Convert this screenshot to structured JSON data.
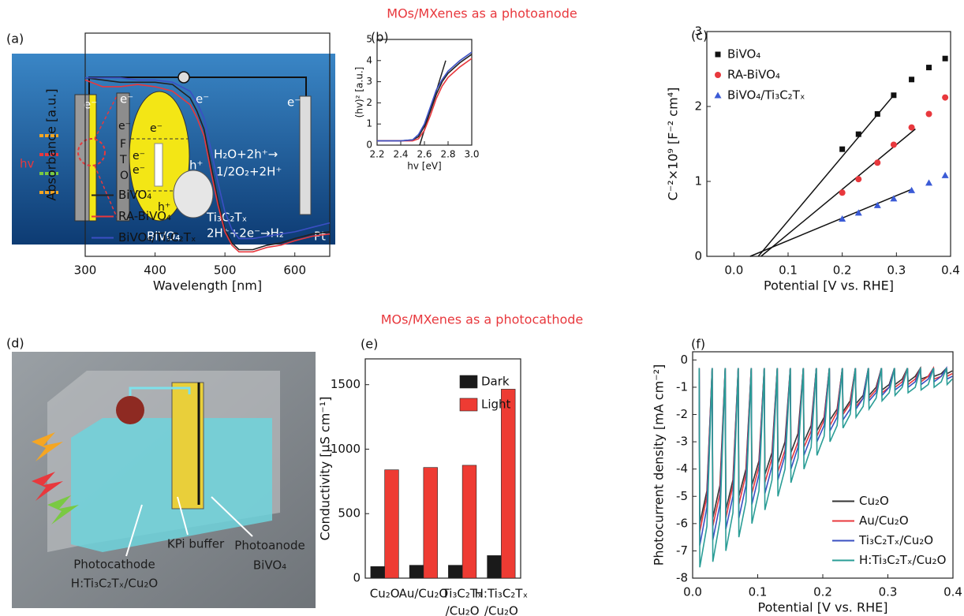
{
  "headings": [
    "MOs/MXenes as a photoanode",
    "MOs/MXenes as a photocathode"
  ],
  "diagram_a": {
    "panel_label": "(a)",
    "texts": [
      "e⁻",
      "e⁻",
      "e⁻",
      "e⁻",
      "e⁻",
      "e⁻",
      "e⁻",
      "e⁻",
      "F",
      "T",
      "O",
      "hv",
      "h⁺",
      "h⁺",
      "H₂O+2h⁺→",
      "1/2O₂+2H⁺",
      "Ti₃C₂Tₓ",
      "BiVO₄",
      "2H⁺+2e⁻→H₂",
      "Pt"
    ]
  },
  "diagram_d": {
    "panel_label": "(d)",
    "texts": [
      "Photocathode",
      "H:Ti₃C₂Tₓ/Cu₂O",
      "KPi buffer",
      "Photoanode",
      "BiVO₄"
    ]
  },
  "chart_data": [
    {
      "type": "line",
      "panel_label": "(b)",
      "xlabel": "Wavelength [nm]",
      "ylabel": "Absorbance [a.u.]",
      "x": [
        300,
        325,
        350,
        375,
        400,
        425,
        450,
        460,
        470,
        480,
        490,
        500,
        510,
        520,
        540,
        560,
        580,
        600,
        625,
        650
      ],
      "xlim": [
        300,
        650
      ],
      "xticks": [
        300,
        400,
        500,
        600
      ],
      "ylim": [
        0,
        1
      ],
      "legend": "lower left",
      "series": [
        {
          "name": "BiVO₄",
          "color": "#222222",
          "values": [
            0.8,
            0.79,
            0.78,
            0.78,
            0.78,
            0.77,
            0.71,
            0.65,
            0.57,
            0.41,
            0.25,
            0.12,
            0.06,
            0.03,
            0.03,
            0.05,
            0.06,
            0.08,
            0.1,
            0.11
          ]
        },
        {
          "name": "RA-BiVO₄",
          "color": "#e8383d",
          "values": [
            0.79,
            0.76,
            0.76,
            0.77,
            0.76,
            0.74,
            0.68,
            0.62,
            0.54,
            0.38,
            0.23,
            0.11,
            0.05,
            0.02,
            0.02,
            0.04,
            0.05,
            0.07,
            0.09,
            0.1
          ]
        },
        {
          "name": "BiVO₄/Ti₃C₂Tₓ",
          "color": "#3b4fc4",
          "values": [
            0.8,
            0.8,
            0.8,
            0.79,
            0.79,
            0.78,
            0.74,
            0.69,
            0.62,
            0.48,
            0.33,
            0.2,
            0.12,
            0.08,
            0.08,
            0.09,
            0.1,
            0.11,
            0.13,
            0.15
          ]
        }
      ]
    },
    {
      "type": "line",
      "xlabel": "hv [eV]",
      "ylabel": "(hv)² [a.u.]",
      "x": [
        2.2,
        2.3,
        2.4,
        2.5,
        2.55,
        2.6,
        2.65,
        2.7,
        2.75,
        2.8,
        2.9,
        3.0
      ],
      "xlim": [
        2.2,
        3.0
      ],
      "xticks": [
        2.2,
        2.4,
        2.6,
        2.8,
        {
          "value": 3.0,
          "label": "3.0"
        }
      ],
      "ylim": [
        0,
        5
      ],
      "yticks": [
        0,
        1,
        2,
        3,
        4,
        5
      ],
      "series": [
        {
          "color": "#222222",
          "values": [
            0.2,
            0.2,
            0.2,
            0.25,
            0.4,
            0.9,
            1.6,
            2.4,
            3.0,
            3.4,
            3.9,
            4.3
          ]
        },
        {
          "color": "#e8383d",
          "values": [
            0.2,
            0.2,
            0.2,
            0.2,
            0.3,
            0.7,
            1.4,
            2.2,
            2.8,
            3.2,
            3.7,
            4.1
          ]
        },
        {
          "color": "#3b4fc4",
          "values": [
            0.2,
            0.2,
            0.2,
            0.25,
            0.5,
            1.0,
            1.8,
            2.6,
            3.1,
            3.5,
            4.0,
            4.4
          ]
        }
      ],
      "fit_lines": [
        {
          "color": "#222222",
          "x": [
            2.56,
            2.78
          ],
          "values": [
            0,
            4
          ]
        }
      ]
    },
    {
      "type": "scatter",
      "panel_label": "(c)",
      "xlabel": "Potential [V vs. RHE]",
      "ylabel": "C⁻²×10⁹ [F⁻² cm⁴]",
      "x": [
        0.2,
        0.23,
        0.265,
        0.295,
        0.328,
        0.36,
        0.39
      ],
      "xlim": [
        -0.05,
        0.4
      ],
      "xticks": [
        {
          "value": 0,
          "label": "0.0"
        },
        0.1,
        0.2,
        0.3,
        0.4
      ],
      "ylim": [
        0,
        3
      ],
      "yticks": [
        0,
        1,
        2,
        3
      ],
      "legend": "upper left",
      "series": [
        {
          "name": "BiVO₄",
          "color": "#111111",
          "marker": "square",
          "values": [
            1.43,
            1.63,
            1.9,
            2.15,
            2.36,
            2.52,
            2.64
          ]
        },
        {
          "name": "RA-BiVO₄",
          "color": "#e8383d",
          "marker": "circle",
          "values": [
            0.85,
            1.03,
            1.25,
            1.49,
            1.72,
            1.9,
            2.12
          ]
        },
        {
          "name": "BiVO₄/Ti₃C₂Tₓ",
          "color": "#3b5bd6",
          "marker": "triangle",
          "values": [
            0.5,
            0.58,
            0.68,
            0.77,
            0.88,
            0.98,
            1.08
          ]
        }
      ],
      "fit_lines": [
        {
          "color": "#111111",
          "x": [
            0.045,
            0.295
          ],
          "values": [
            0,
            2.15
          ]
        },
        {
          "color": "#111111",
          "x": [
            0.05,
            0.335
          ],
          "values": [
            0,
            1.7
          ]
        },
        {
          "color": "#111111",
          "x": [
            0.03,
            0.33
          ],
          "values": [
            0,
            0.9
          ]
        }
      ]
    },
    {
      "type": "bar",
      "panel_label": "(e)",
      "ylabel": "Conductivity [µS cm⁻¹]",
      "categories": [
        [
          "Cu₂O"
        ],
        [
          "Au/Cu₂O"
        ],
        [
          "Ti₃C₂Tₓ",
          "/Cu₂O"
        ],
        [
          "H:Ti₃C₂Tₓ",
          "/Cu₂O"
        ]
      ],
      "ylim": [
        0,
        1700
      ],
      "yticks": [
        0,
        500,
        1000,
        1500
      ],
      "legend": "upper right",
      "series": [
        {
          "name": "Dark",
          "color": "#1a1a1a",
          "values": [
            90,
            100,
            100,
            175
          ]
        },
        {
          "name": "Light",
          "color": "#ee3b33",
          "values": [
            840,
            858,
            875,
            1465
          ]
        }
      ]
    },
    {
      "type": "line",
      "panel_label": "(f)",
      "xlabel": "Potential [V vs. RHE]",
      "ylabel": "Photocurrent density [mA cm⁻²]",
      "x": [
        0.01,
        0.011,
        0.022,
        0.03,
        0.031,
        0.042,
        0.05,
        0.051,
        0.062,
        0.07,
        0.071,
        0.082,
        0.09,
        0.091,
        0.102,
        0.11,
        0.111,
        0.122,
        0.13,
        0.131,
        0.142,
        0.15,
        0.151,
        0.162,
        0.17,
        0.171,
        0.182,
        0.19,
        0.191,
        0.202,
        0.21,
        0.211,
        0.222,
        0.23,
        0.231,
        0.242,
        0.25,
        0.251,
        0.262,
        0.27,
        0.271,
        0.282,
        0.29,
        0.291,
        0.302,
        0.31,
        0.311,
        0.322,
        0.33,
        0.331,
        0.342,
        0.35,
        0.351,
        0.362,
        0.37,
        0.371,
        0.382,
        0.39,
        0.391,
        0.399
      ],
      "xlim": [
        0,
        0.4
      ],
      "xticks": [
        {
          "value": 0,
          "label": "0.0"
        },
        0.1,
        0.2,
        0.3,
        0.4
      ],
      "ylim": [
        -8,
        0.3
      ],
      "yticks": [
        -8,
        -7,
        -6,
        -5,
        -4,
        -3,
        -2,
        -1,
        0
      ],
      "legend": "lower right",
      "series": [
        {
          "name": "Cu₂O",
          "color": "#333333",
          "values": [
            -0.3,
            -6.0,
            -4.8,
            -0.3,
            -5.8,
            -4.6,
            -0.3,
            -5.5,
            -4.4,
            -0.3,
            -5.0,
            -4.0,
            -0.3,
            -4.6,
            -3.7,
            -0.3,
            -4.2,
            -3.4,
            -0.3,
            -3.8,
            -3.0,
            -0.3,
            -3.4,
            -2.7,
            -0.3,
            -3.0,
            -2.4,
            -0.3,
            -2.6,
            -2.1,
            -0.3,
            -2.2,
            -1.8,
            -0.3,
            -1.9,
            -1.5,
            -0.3,
            -1.6,
            -1.3,
            -0.3,
            -1.3,
            -1.0,
            -0.3,
            -1.1,
            -0.9,
            -0.3,
            -0.9,
            -0.7,
            -0.3,
            -0.8,
            -0.6,
            -0.3,
            -0.7,
            -0.6,
            -0.3,
            -0.6,
            -0.5,
            -0.3,
            -0.5,
            -0.4
          ]
        },
        {
          "name": "Au/Cu₂O",
          "color": "#e8383d",
          "values": [
            -0.3,
            -6.3,
            -5.0,
            -0.3,
            -6.1,
            -4.9,
            -0.3,
            -5.8,
            -4.6,
            -0.3,
            -5.3,
            -4.2,
            -0.3,
            -4.9,
            -3.9,
            -0.3,
            -4.5,
            -3.6,
            -0.3,
            -4.1,
            -3.3,
            -0.3,
            -3.7,
            -3.0,
            -0.3,
            -3.2,
            -2.6,
            -0.3,
            -2.8,
            -2.2,
            -0.3,
            -2.4,
            -1.9,
            -0.3,
            -2.0,
            -1.6,
            -0.3,
            -1.7,
            -1.4,
            -0.3,
            -1.4,
            -1.1,
            -0.3,
            -1.2,
            -1.0,
            -0.3,
            -1.0,
            -0.8,
            -0.3,
            -0.9,
            -0.7,
            -0.3,
            -0.8,
            -0.6,
            -0.3,
            -0.7,
            -0.6,
            -0.3,
            -0.6,
            -0.5
          ]
        },
        {
          "name": "Ti₃C₂Tₓ/Cu₂O",
          "color": "#3a4fc1",
          "values": [
            -0.3,
            -6.8,
            -5.4,
            -0.3,
            -6.6,
            -5.3,
            -0.3,
            -6.2,
            -5.0,
            -0.3,
            -5.8,
            -4.6,
            -0.3,
            -5.3,
            -4.2,
            -0.3,
            -4.9,
            -3.9,
            -0.3,
            -4.4,
            -3.5,
            -0.3,
            -4.0,
            -3.2,
            -0.3,
            -3.5,
            -2.8,
            -0.3,
            -3.0,
            -2.4,
            -0.3,
            -2.6,
            -2.1,
            -0.3,
            -2.2,
            -1.8,
            -0.3,
            -1.8,
            -1.4,
            -0.3,
            -1.5,
            -1.2,
            -0.3,
            -1.3,
            -1.0,
            -0.3,
            -1.1,
            -0.9,
            -0.3,
            -1.0,
            -0.8,
            -0.3,
            -0.9,
            -0.7,
            -0.3,
            -0.8,
            -0.6,
            -0.3,
            -0.7,
            -0.6
          ]
        },
        {
          "name": "H:Ti₃C₂Tₓ/Cu₂O",
          "color": "#2a9d96",
          "values": [
            -0.3,
            -7.6,
            -6.1,
            -0.3,
            -7.4,
            -5.9,
            -0.3,
            -7.0,
            -5.6,
            -0.3,
            -6.5,
            -5.2,
            -0.3,
            -6.0,
            -4.8,
            -0.3,
            -5.5,
            -4.4,
            -0.3,
            -5.0,
            -4.0,
            -0.3,
            -4.5,
            -3.6,
            -0.3,
            -4.0,
            -3.2,
            -0.3,
            -3.5,
            -2.8,
            -0.3,
            -3.0,
            -2.4,
            -0.3,
            -2.5,
            -2.0,
            -0.3,
            -2.1,
            -1.7,
            -0.3,
            -1.8,
            -1.4,
            -0.3,
            -1.5,
            -1.2,
            -0.3,
            -1.3,
            -1.0,
            -0.3,
            -1.2,
            -1.0,
            -0.3,
            -1.1,
            -0.9,
            -0.3,
            -1.0,
            -0.8,
            -0.3,
            -0.9,
            -0.7
          ]
        }
      ]
    }
  ]
}
